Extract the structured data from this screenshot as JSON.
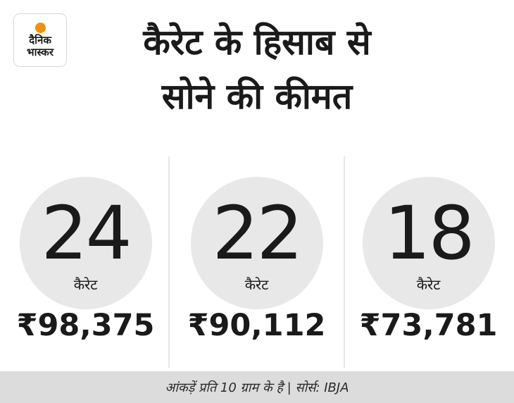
{
  "logo": {
    "line1": "दैनिक",
    "line2": "भास्कर",
    "accent_color": "#f39200"
  },
  "title": {
    "line1": "कैरेट के हिसाब से",
    "line2": "सोने की कीमत"
  },
  "items": [
    {
      "karat": "24",
      "unit": "कैरेट",
      "price": "₹98,375"
    },
    {
      "karat": "22",
      "unit": "कैरेट",
      "price": "₹90,112"
    },
    {
      "karat": "18",
      "unit": "कैरेट",
      "price": "₹73,781"
    }
  ],
  "footer": {
    "note": "आंकड़ें प्रति 10 ग्राम के है | सोर्स: IBJA"
  },
  "colors": {
    "circle": "#e8e8e8",
    "footer_bg": "#dcdcdc",
    "text": "#1a1a1a"
  }
}
